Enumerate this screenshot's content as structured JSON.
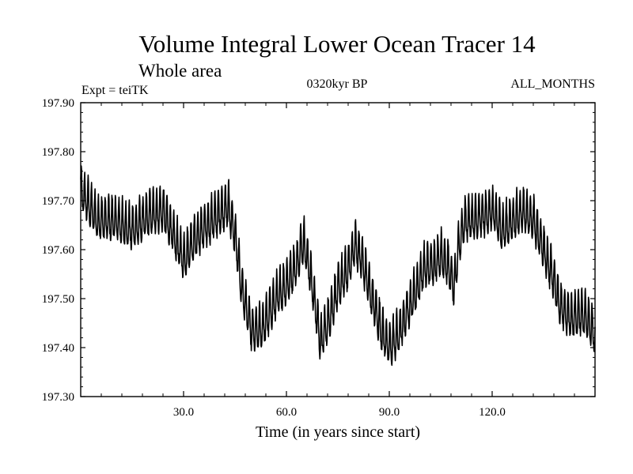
{
  "chart_data": {
    "type": "line",
    "title": "Volume Integral Lower Ocean Tracer 14",
    "subtitle": "Whole area",
    "experiment_label": "Expt = teiTK",
    "period_label": "0320kyr BP",
    "months_label": "ALL_MONTHS",
    "xlabel": "Time (in years since start)",
    "ylabel": "",
    "xlim": [
      0,
      150
    ],
    "ylim": [
      197.3,
      197.9
    ],
    "x_ticks": [
      {
        "value": 30,
        "label": "30.0"
      },
      {
        "value": 60,
        "label": "60.0"
      },
      {
        "value": 90,
        "label": "90.0"
      },
      {
        "value": 120,
        "label": "120.0"
      }
    ],
    "y_ticks": [
      {
        "value": 197.3,
        "label": "197.30"
      },
      {
        "value": 197.4,
        "label": "197.40"
      },
      {
        "value": 197.5,
        "label": "197.50"
      },
      {
        "value": 197.6,
        "label": "197.60"
      },
      {
        "value": 197.7,
        "label": "197.70"
      },
      {
        "value": 197.8,
        "label": "197.80"
      },
      {
        "value": 197.9,
        "label": "197.90"
      }
    ],
    "series": [
      {
        "name": "Tracer 14",
        "color": "#000000",
        "sampling": "monthly, seasonal cycle amplitude ~0.04",
        "envelope": {
          "x": [
            0,
            5,
            10,
            15,
            20,
            24,
            27,
            30,
            33,
            37,
            40,
            43,
            45,
            47,
            50,
            53,
            55,
            57,
            60,
            63,
            65,
            67,
            70,
            72,
            75,
            78,
            80,
            82,
            85,
            88,
            90,
            93,
            95,
            98,
            100,
            103,
            105,
            107,
            109,
            110,
            112,
            115,
            118,
            120,
            123,
            126,
            129,
            132,
            135,
            138,
            140,
            143,
            146,
            148,
            150
          ],
          "y": [
            197.72,
            197.66,
            197.66,
            197.64,
            197.67,
            197.68,
            197.63,
            197.58,
            197.62,
            197.65,
            197.67,
            197.69,
            197.63,
            197.52,
            197.43,
            197.44,
            197.47,
            197.5,
            197.53,
            197.57,
            197.62,
            197.55,
            197.41,
            197.45,
            197.52,
            197.56,
            197.61,
            197.58,
            197.5,
            197.43,
            197.4,
            197.43,
            197.47,
            197.52,
            197.56,
            197.57,
            197.59,
            197.57,
            197.52,
            197.6,
            197.66,
            197.66,
            197.67,
            197.68,
            197.64,
            197.66,
            197.68,
            197.66,
            197.6,
            197.54,
            197.48,
            197.46,
            197.47,
            197.46,
            197.42
          ]
        }
      }
    ]
  }
}
